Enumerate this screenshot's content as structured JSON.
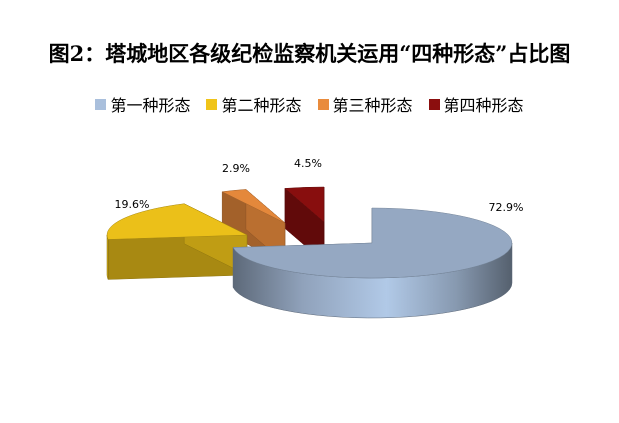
{
  "chart_data": {
    "type": "pie",
    "title": "图2：塔城地区各级纪检监察机关运用“四种形态”占比图",
    "categories": [
      "第一种形态",
      "第二种形态",
      "第三种形态",
      "第四种形态"
    ],
    "values": [
      72.9,
      19.6,
      2.9,
      4.5
    ],
    "data_labels": [
      "72.9%",
      "19.6%",
      "2.9%",
      "4.5%"
    ],
    "colors": [
      "#A9BFDC",
      "#F0C419",
      "#E98B3C",
      "#8B0E0E"
    ],
    "legend_position": "top",
    "style": "3d-exploded"
  }
}
